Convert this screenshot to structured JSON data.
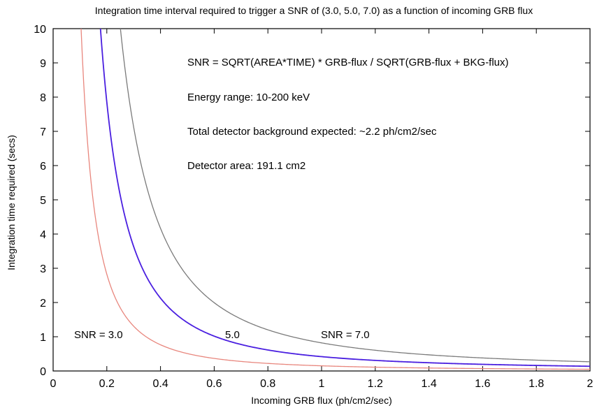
{
  "chart_data": {
    "type": "line",
    "title": "Integration time interval required to trigger a SNR of (3.0, 5.0, 7.0) as a function of incoming GRB flux",
    "xlabel": "Incoming GRB flux (ph/cm2/sec)",
    "ylabel": "Integration time required (secs)",
    "xlim": [
      0,
      2
    ],
    "ylim": [
      0,
      10
    ],
    "xticks": [
      "0",
      "0.2",
      "0.4",
      "0.6",
      "0.8",
      "1",
      "1.2",
      "1.4",
      "1.6",
      "1.8",
      "2"
    ],
    "yticks": [
      "0",
      "1",
      "2",
      "3",
      "4",
      "5",
      "6",
      "7",
      "8",
      "9",
      "10"
    ],
    "grid": false,
    "area_cm2": 191.1,
    "background_flux": 2.2,
    "series": [
      {
        "snr": 3.0,
        "color": "#e8867d",
        "label": "SNR = 3.0"
      },
      {
        "snr": 5.0,
        "color": "#4a1fe0",
        "label": "5.0"
      },
      {
        "snr": 7.0,
        "color": "#7a7a7a",
        "label": "SNR = 7.0"
      }
    ],
    "annotations": [
      "SNR = SQRT(AREA*TIME) * GRB-flux / SQRT(GRB-flux + BKG-flux)",
      "Energy range: 10-200 keV",
      "Total detector background expected: ~2.2 ph/cm2/sec",
      "Detector area: 191.1 cm2"
    ]
  }
}
